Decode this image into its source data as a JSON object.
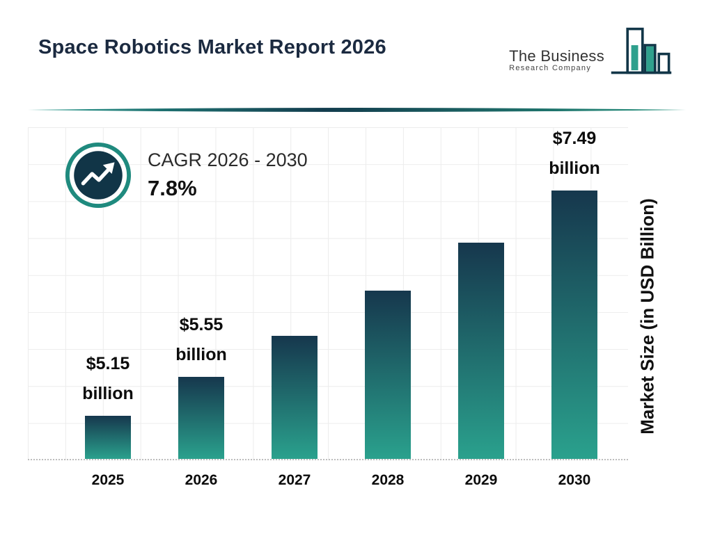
{
  "title": "Space Robotics Market Report 2026",
  "logo": {
    "name_line1": "The Business",
    "name_line2": "Research Company"
  },
  "cagr": {
    "label": "CAGR 2026 - 2030",
    "value": "7.8%"
  },
  "chart_data": {
    "type": "bar",
    "title": "Space Robotics Market Report 2026",
    "categories": [
      "2025",
      "2026",
      "2027",
      "2028",
      "2029",
      "2030"
    ],
    "values": [
      5.15,
      5.55,
      5.98,
      6.45,
      6.95,
      7.49
    ],
    "unit": "USD Billion",
    "xlabel": "",
    "ylabel": "Market Size (in USD Billion)",
    "ylim": [
      4.7,
      8.15
    ],
    "grid": true,
    "legend": false,
    "labeled_points": [
      {
        "year": "2025",
        "line1": "$5.15",
        "line2": "billion"
      },
      {
        "year": "2026",
        "line1": "$5.55",
        "line2": "billion"
      },
      {
        "year": "2030",
        "line1": "$7.49",
        "line2": "billion"
      }
    ],
    "colors": {
      "bar_top": "#16374d",
      "bar_bottom": "#2aa18d",
      "accent_teal": "#1f8a7e",
      "dark_navy": "#113547"
    }
  }
}
